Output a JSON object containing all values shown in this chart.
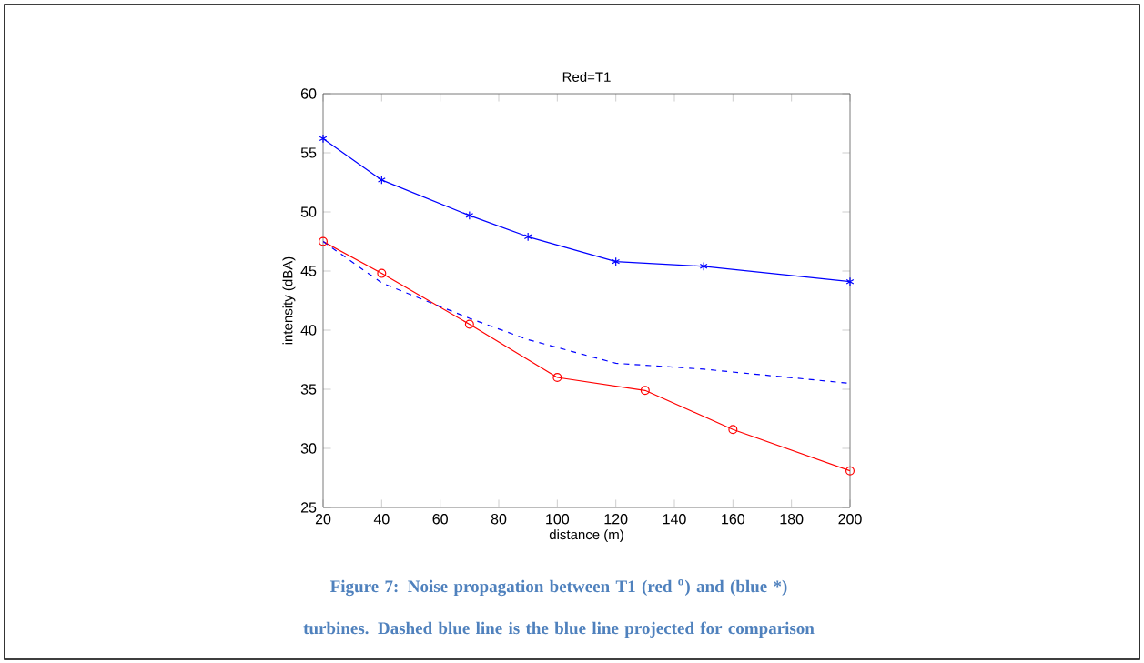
{
  "chart_data": {
    "type": "line",
    "title": "Red=T1",
    "xlabel": "distance (m)",
    "ylabel": "intensity (dBA)",
    "xlim": [
      20,
      200
    ],
    "xticks": [
      20,
      40,
      60,
      80,
      100,
      120,
      140,
      160,
      180,
      200
    ],
    "ylim": [
      25,
      60
    ],
    "yticks": [
      25,
      30,
      35,
      40,
      45,
      50,
      55,
      60
    ],
    "grid": false,
    "series": [
      {
        "color": "#0000ff",
        "marker": "cross",
        "line_style": "solid",
        "x": [
          20,
          40,
          70,
          90,
          120,
          150,
          200
        ],
        "values": [
          56.2,
          52.7,
          49.7,
          47.9,
          45.8,
          45.4,
          44.1
        ]
      },
      {
        "color": "#ff0000",
        "marker": "circle",
        "line_style": "solid",
        "x": [
          20,
          40,
          70,
          100,
          130,
          160,
          200
        ],
        "values": [
          47.5,
          44.8,
          40.5,
          36.0,
          34.9,
          31.6,
          28.1
        ]
      },
      {
        "color": "#0000ff",
        "marker": "none",
        "line_style": "dashed",
        "x": [
          20,
          40,
          70,
          90,
          120,
          150,
          200
        ],
        "values": [
          47.5,
          44.0,
          41.0,
          39.2,
          37.2,
          36.7,
          35.5
        ]
      }
    ],
    "annotations": [
      "Figure 7: Noise propagation between T1 (red $^{o}$) and (blue *) turbines. Dashed blue line is the blue line projected for comparison"
    ]
  }
}
